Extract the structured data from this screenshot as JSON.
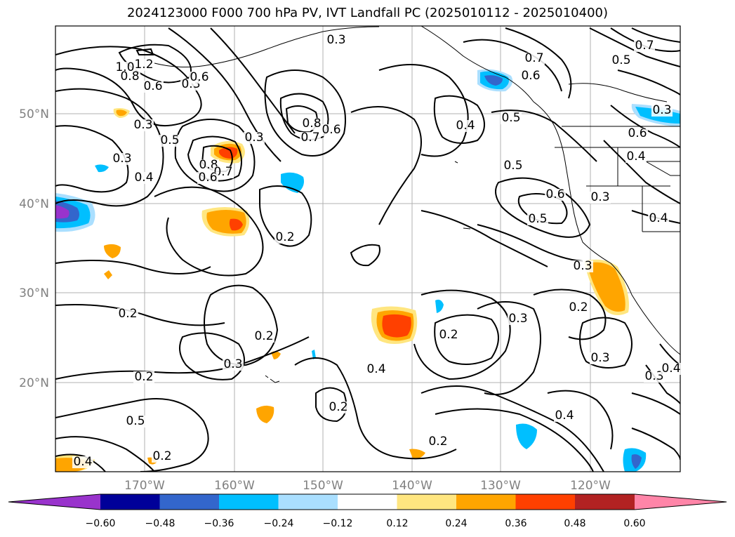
{
  "title": "2024123000 F000 700 hPa PV, IVT Landfall PC (2025010112 - 2025010400)",
  "lat_labels": [
    "50°N",
    "40°N",
    "30°N",
    "20°N"
  ],
  "lon_labels": [
    "170°W",
    "160°W",
    "150°W",
    "140°W",
    "130°W",
    "120°W"
  ],
  "colorbar": {
    "ticks": [
      "−0.60",
      "−0.48",
      "−0.36",
      "−0.24",
      "−0.12",
      "0.12",
      "0.24",
      "0.36",
      "0.48",
      "0.60"
    ],
    "colors": [
      "#9933cc",
      "#000099",
      "#3366cc",
      "#00bfff",
      "#aadfff",
      "#ffffff",
      "#ffe680",
      "#ffa500",
      "#ff4000",
      "#b22222",
      "#ff85a8"
    ]
  },
  "contour_labels": [
    "1.2",
    "1.0",
    "0.8",
    "0.6",
    "0.3",
    "0.3",
    "0.5",
    "0.3",
    "0.4",
    "0.8",
    "0.7",
    "0.6",
    "0.3",
    "0.8",
    "0.7",
    "0.6",
    "0.2",
    "0.6",
    "0.5",
    "0.5",
    "0.4",
    "0.5",
    "0.6",
    "0.7",
    "0.3",
    "0.4",
    "0.3",
    "0.2",
    "0.2",
    "0.3",
    "0.2",
    "0.3",
    "0.2",
    "0.3",
    "0.4",
    "0.2",
    "0.2",
    "0.4",
    "0.3",
    "0.5",
    "0.2",
    "0.4",
    "0.2",
    "0.3",
    "0.4",
    "0.6",
    "0.7",
    "0.5",
    "0.4",
    "0.6",
    "0.3"
  ]
}
